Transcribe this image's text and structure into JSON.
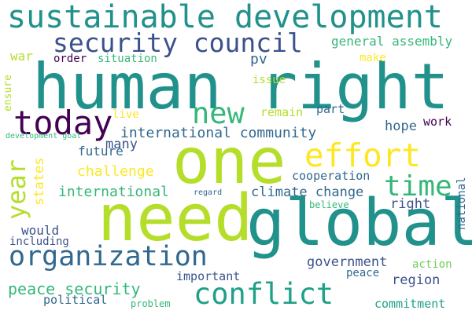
{
  "colors": {
    "background": "#ffffff",
    "dark_purple": "#440154",
    "indigo": "#3b528b",
    "slate": "#31688e",
    "teal": "#21918c",
    "sea": "#1fa187",
    "green": "#35b779",
    "light_green": "#6ece58",
    "lime": "#b5de2b",
    "yellow": "#fde725"
  },
  "words": [
    {
      "text": "sustainable development",
      "color": "#21918c"
    },
    {
      "text": "security council",
      "color": "#3b528b"
    },
    {
      "text": "human right",
      "color": "#21918c"
    },
    {
      "text": "today",
      "color": "#440154"
    },
    {
      "text": "new",
      "color": "#35b779"
    },
    {
      "text": "effort",
      "color": "#fde725"
    },
    {
      "text": "one",
      "color": "#b5de2b"
    },
    {
      "text": "time",
      "color": "#35b779"
    },
    {
      "text": "year",
      "color": "#b5de2b"
    },
    {
      "text": "need",
      "color": "#b5de2b"
    },
    {
      "text": "global",
      "color": "#21918c"
    },
    {
      "text": "organization",
      "color": "#31688e"
    },
    {
      "text": "conflict",
      "color": "#1fa187"
    },
    {
      "text": "general assembly",
      "color": "#35b779"
    },
    {
      "text": "war",
      "color": "#b5de2b"
    },
    {
      "text": "order",
      "color": "#440154"
    },
    {
      "text": "situation",
      "color": "#35b779"
    },
    {
      "text": "pv",
      "color": "#31688e"
    },
    {
      "text": "make",
      "color": "#fde725"
    },
    {
      "text": "ensure",
      "color": "#b5de2b"
    },
    {
      "text": "issue",
      "color": "#b5de2b"
    },
    {
      "text": "remain",
      "color": "#b5de2b"
    },
    {
      "text": "part",
      "color": "#31688e"
    },
    {
      "text": "live",
      "color": "#fde725"
    },
    {
      "text": "international community",
      "color": "#31688e"
    },
    {
      "text": "work",
      "color": "#440154"
    },
    {
      "text": "hope",
      "color": "#31688e"
    },
    {
      "text": "development goal",
      "color": "#35b779"
    },
    {
      "text": "future",
      "color": "#31688e"
    },
    {
      "text": "many",
      "color": "#3b528b"
    },
    {
      "text": "states",
      "color": "#fde725"
    },
    {
      "text": "challenge",
      "color": "#fde725"
    },
    {
      "text": "cooperation",
      "color": "#31688e"
    },
    {
      "text": "international",
      "color": "#35b779"
    },
    {
      "text": "regard",
      "color": "#31688e"
    },
    {
      "text": "climate change",
      "color": "#31688e"
    },
    {
      "text": "right",
      "color": "#3b528b"
    },
    {
      "text": "believe",
      "color": "#35b779"
    },
    {
      "text": "national",
      "color": "#31688e"
    },
    {
      "text": "would",
      "color": "#3b528b"
    },
    {
      "text": "including",
      "color": "#3b528b"
    },
    {
      "text": "government",
      "color": "#3b528b"
    },
    {
      "text": "action",
      "color": "#6ece58"
    },
    {
      "text": "peace",
      "color": "#31688e"
    },
    {
      "text": "important",
      "color": "#3b528b"
    },
    {
      "text": "region",
      "color": "#3b528b"
    },
    {
      "text": "peace security",
      "color": "#35b779"
    },
    {
      "text": "political",
      "color": "#31688e"
    },
    {
      "text": "problem",
      "color": "#35b779"
    },
    {
      "text": "commitment",
      "color": "#1fa187"
    }
  ]
}
